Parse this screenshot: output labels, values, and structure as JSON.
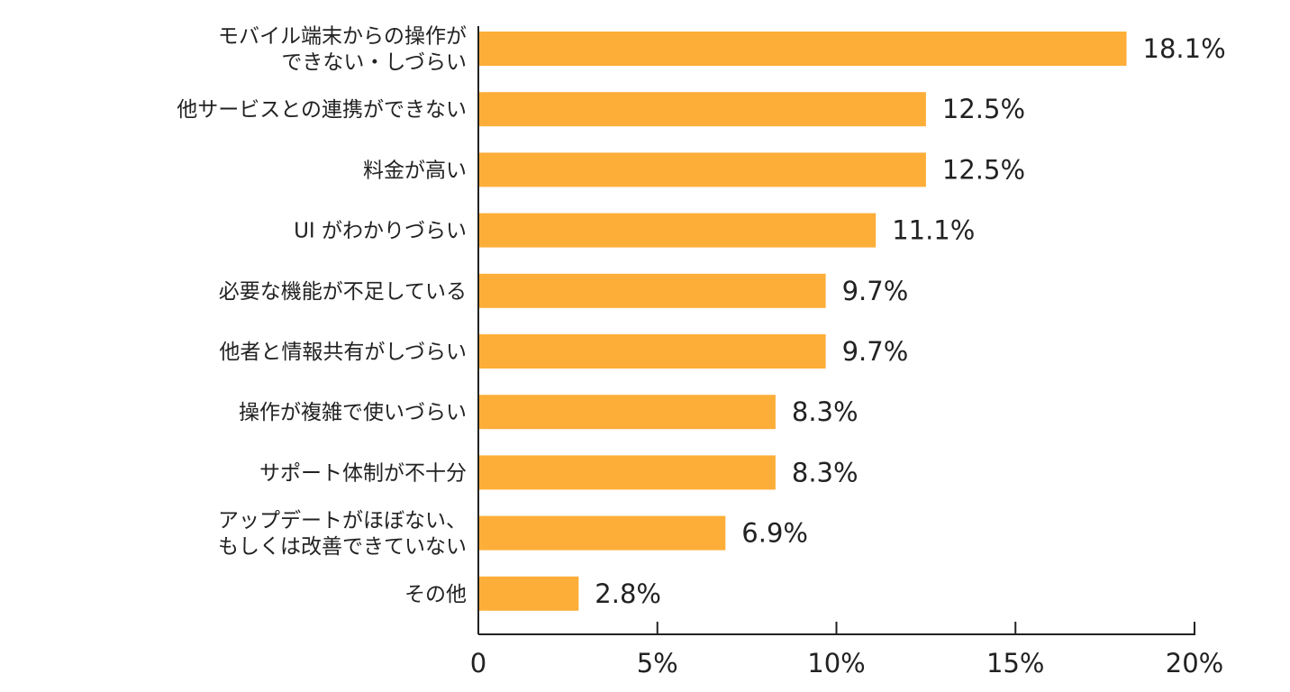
{
  "chart_data": {
    "type": "bar",
    "orientation": "horizontal",
    "title": "",
    "xlabel": "",
    "ylabel": "",
    "xlim": [
      0,
      20
    ],
    "unit": "%",
    "grid": false,
    "bar_color": "#FDAE38",
    "axis_color": "#222222",
    "categories": [
      [
        "モバイル端末からの操作が",
        "できない・しづらい"
      ],
      [
        "他サービスとの連携ができない"
      ],
      [
        "料金が高い"
      ],
      [
        "UI がわかりづらい"
      ],
      [
        "必要な機能が不足している"
      ],
      [
        "他者と情報共有がしづらい"
      ],
      [
        "操作が複雑で使いづらい"
      ],
      [
        "サポート体制が不十分"
      ],
      [
        "アップデートがほぼない、",
        "もしくは改善できていない"
      ],
      [
        "その他"
      ]
    ],
    "values": [
      18.1,
      12.5,
      12.5,
      11.1,
      9.7,
      9.7,
      8.3,
      8.3,
      6.9,
      2.8
    ],
    "value_labels": [
      "18.1%",
      "12.5%",
      "12.5%",
      "11.1%",
      "9.7%",
      "9.7%",
      "8.3%",
      "8.3%",
      "6.9%",
      "2.8%"
    ],
    "ticks": [
      0,
      5,
      10,
      15,
      20
    ],
    "tick_labels": [
      "0",
      "5%",
      "10%",
      "15%",
      "20%"
    ]
  }
}
